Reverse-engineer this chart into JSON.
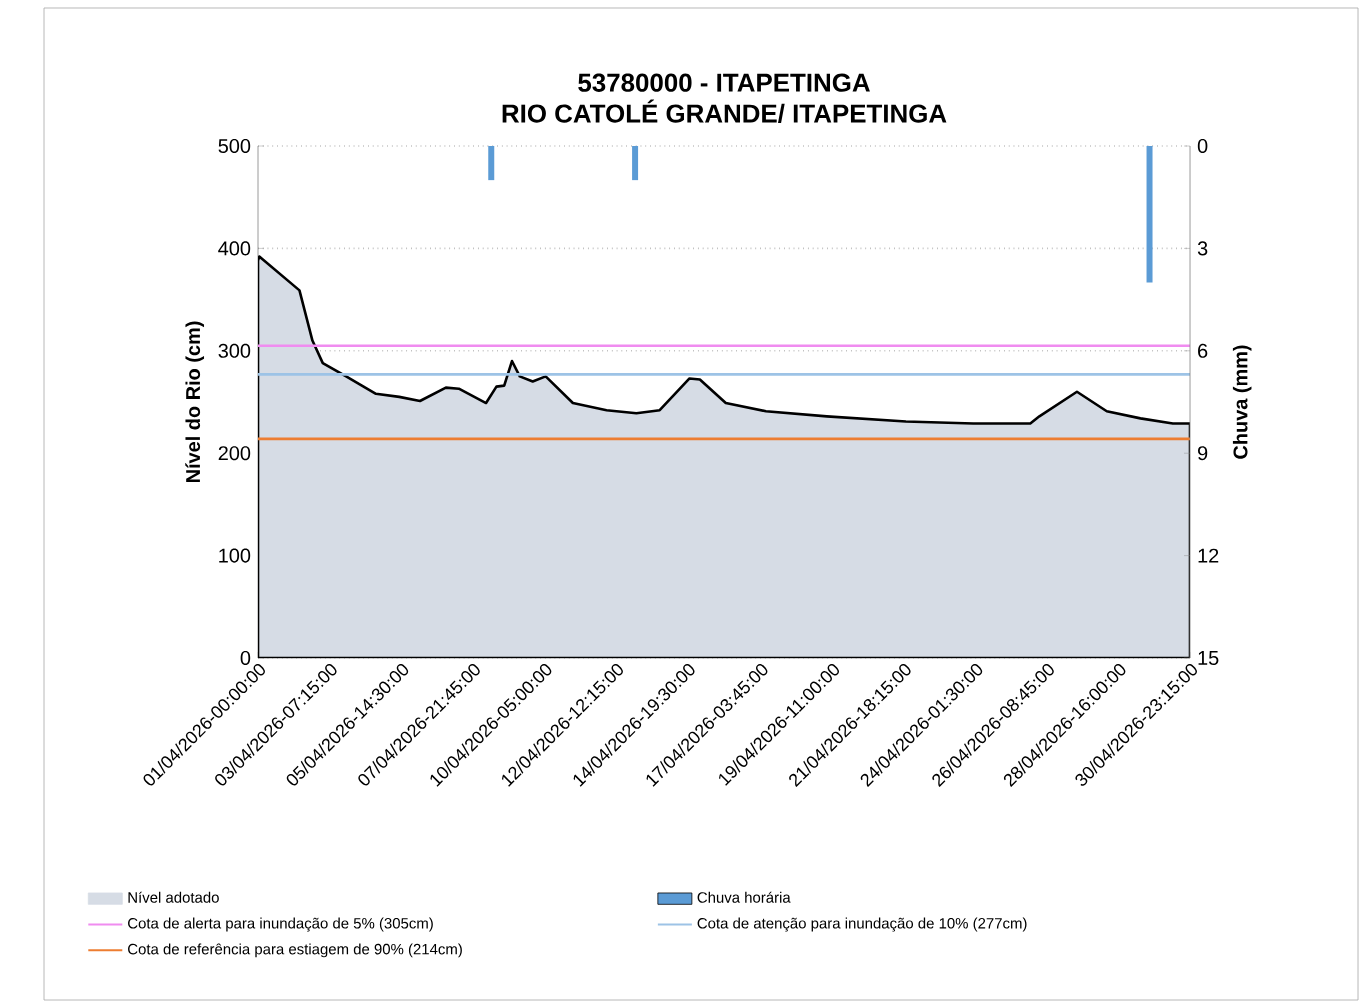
{
  "chart_data": {
    "type": "area",
    "title": "53780000 - ITAPETINGA",
    "subtitle": "RIO CATOLÉ GRANDE/ ITAPETINGA",
    "ylabel": "Nível do Rio  (cm)",
    "y2label": "Chuva (mm)",
    "xlim": [
      "2026-04-01T00:00",
      "2026-04-30T23:15"
    ],
    "xticks": [
      {
        "value": "2026-04-01T00:00",
        "label": "01/04/2026-00:00:00"
      },
      {
        "value": "2026-04-03T07:15",
        "label": "03/04/2026-07:15:00"
      },
      {
        "value": "2026-04-05T14:30",
        "label": "05/04/2026-14:30:00"
      },
      {
        "value": "2026-04-07T21:45",
        "label": "07/04/2026-21:45:00"
      },
      {
        "value": "2026-04-10T05:00",
        "label": "10/04/2026-05:00:00"
      },
      {
        "value": "2026-04-12T12:15",
        "label": "12/04/2026-12:15:00"
      },
      {
        "value": "2026-04-14T19:30",
        "label": "14/04/2026-19:30:00"
      },
      {
        "value": "2026-04-17T03:45",
        "label": "17/04/2026-03:45:00"
      },
      {
        "value": "2026-04-19T11:00",
        "label": "19/04/2026-11:00:00"
      },
      {
        "value": "2026-04-21T18:15",
        "label": "21/04/2026-18:15:00"
      },
      {
        "value": "2026-04-24T01:30",
        "label": "24/04/2026-01:30:00"
      },
      {
        "value": "2026-04-26T08:45",
        "label": "26/04/2026-08:45:00"
      },
      {
        "value": "2026-04-28T16:00",
        "label": "28/04/2026-16:00:00"
      },
      {
        "value": "2026-04-30T23:15",
        "label": "30/04/2026-23:15:00"
      }
    ],
    "ylim": [
      0,
      500
    ],
    "yticks": [
      0,
      100,
      200,
      300,
      400,
      500
    ],
    "y2lim": [
      15,
      0
    ],
    "y2ticks": [
      0,
      3,
      6,
      9,
      12,
      15
    ],
    "grid": "y",
    "legend": "bottom",
    "series": [
      {
        "name": "Nível adotado",
        "color": "#d6dce5",
        "x": [
          "2026-04-01T00:00",
          "2026-04-01T01:00",
          "2026-04-02T08:00",
          "2026-04-02T18:00",
          "2026-04-03T02:00",
          "2026-04-03T20:00",
          "2026-04-04T19:00",
          "2026-04-05T13:00",
          "2026-04-06T05:00",
          "2026-04-07T01:00",
          "2026-04-07T11:00",
          "2026-04-08T08:00",
          "2026-04-08T16:00",
          "2026-04-08T22:00",
          "2026-04-09T04:00",
          "2026-04-09T10:00",
          "2026-04-09T20:00",
          "2026-04-10T06:00",
          "2026-04-11T03:00",
          "2026-04-12T05:00",
          "2026-04-13T04:00",
          "2026-04-13T22:00",
          "2026-04-14T21:00",
          "2026-04-15T05:00",
          "2026-04-16T01:00",
          "2026-04-17T08:00",
          "2026-04-19T07:00",
          "2026-04-21T20:00",
          "2026-04-24T00:00",
          "2026-04-25T20:00",
          "2026-04-26T03:00",
          "2026-04-27T08:00",
          "2026-04-28T07:00",
          "2026-04-29T09:00",
          "2026-04-30T10:00",
          "2026-04-30T23:15"
        ],
        "values": [
          388,
          392,
          359,
          310,
          288,
          275,
          258,
          255,
          251,
          264,
          263,
          249,
          265,
          266,
          290,
          275,
          270,
          275,
          249,
          242,
          239,
          242,
          273,
          272,
          249,
          241,
          236,
          231,
          229,
          229,
          236,
          260,
          241,
          234,
          229,
          229
        ]
      },
      {
        "name": "Chuva horária",
        "type": "bar",
        "axis": "y2",
        "color": "#5b9bd5",
        "x": [
          "2026-04-08T12:00",
          "2026-04-13T03:00",
          "2026-04-29T16:00"
        ],
        "values": [
          1,
          1,
          4
        ]
      }
    ],
    "ref_lines": [
      {
        "axis": "y",
        "value": 305,
        "label": "Cota de alerta para inundação de 5% (305cm)",
        "color": "#f08cf0"
      },
      {
        "axis": "y",
        "value": 277,
        "label": "Cota de atenção para inundação de 10% (277cm)",
        "color": "#9dc3e6"
      },
      {
        "axis": "y",
        "value": 214,
        "label": "Cota de referência para estiagem de 90% (214cm)",
        "color": "#ed7d31"
      }
    ]
  }
}
